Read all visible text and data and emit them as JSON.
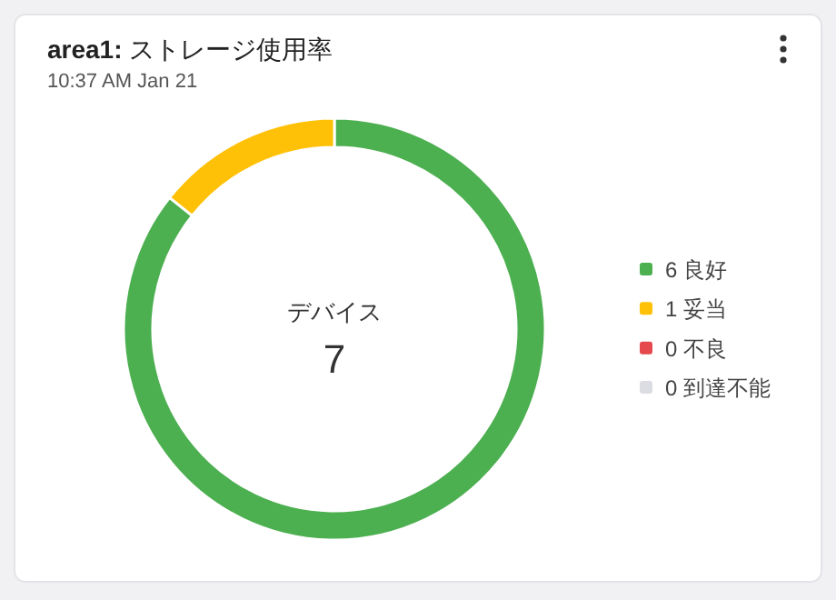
{
  "chart_data": {
    "type": "donut",
    "title": "**area1:** ストレージ使用率",
    "subtitle": "10:37 AM Jan 21",
    "categories": [
      "6 良好",
      "1 妥当",
      "0 不良",
      "0 到達不能"
    ],
    "values": [
      6,
      1,
      0,
      0
    ],
    "colors": [
      "#4caf50",
      "#ffc107",
      "#e5484d",
      "#dcdde2"
    ],
    "legend": "right",
    "annotations": [
      "デバイス",
      "7"
    ]
  }
}
